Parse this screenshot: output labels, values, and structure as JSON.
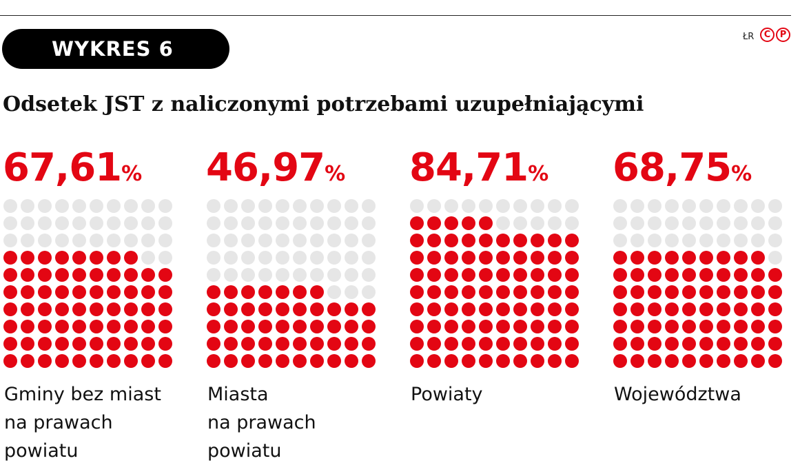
{
  "header": {
    "badge": "WYKRES 6",
    "credit": "ŁR",
    "logo": [
      "C",
      "P"
    ],
    "title": "Odsetek JST z naliczonymi potrzebami uzupełniającymi"
  },
  "colors": {
    "filled": "#e30613",
    "empty": "#e6e6e6"
  },
  "chart_data": {
    "type": "waffle",
    "title": "Odsetek JST z naliczonymi potrzebami uzupełniającymi",
    "grid": "10x10",
    "unit": "%",
    "series": [
      {
        "value": "67,61",
        "pct": 67.61,
        "label": [
          "Gminy bez miast",
          "na prawach",
          "powiatu"
        ]
      },
      {
        "value": "46,97",
        "pct": 46.97,
        "label": [
          "Miasta",
          "na prawach",
          "powiatu"
        ]
      },
      {
        "value": "84,71",
        "pct": 84.71,
        "label": [
          "Powiaty"
        ]
      },
      {
        "value": "68,75",
        "pct": 68.75,
        "label": [
          "Województwa"
        ]
      }
    ]
  }
}
